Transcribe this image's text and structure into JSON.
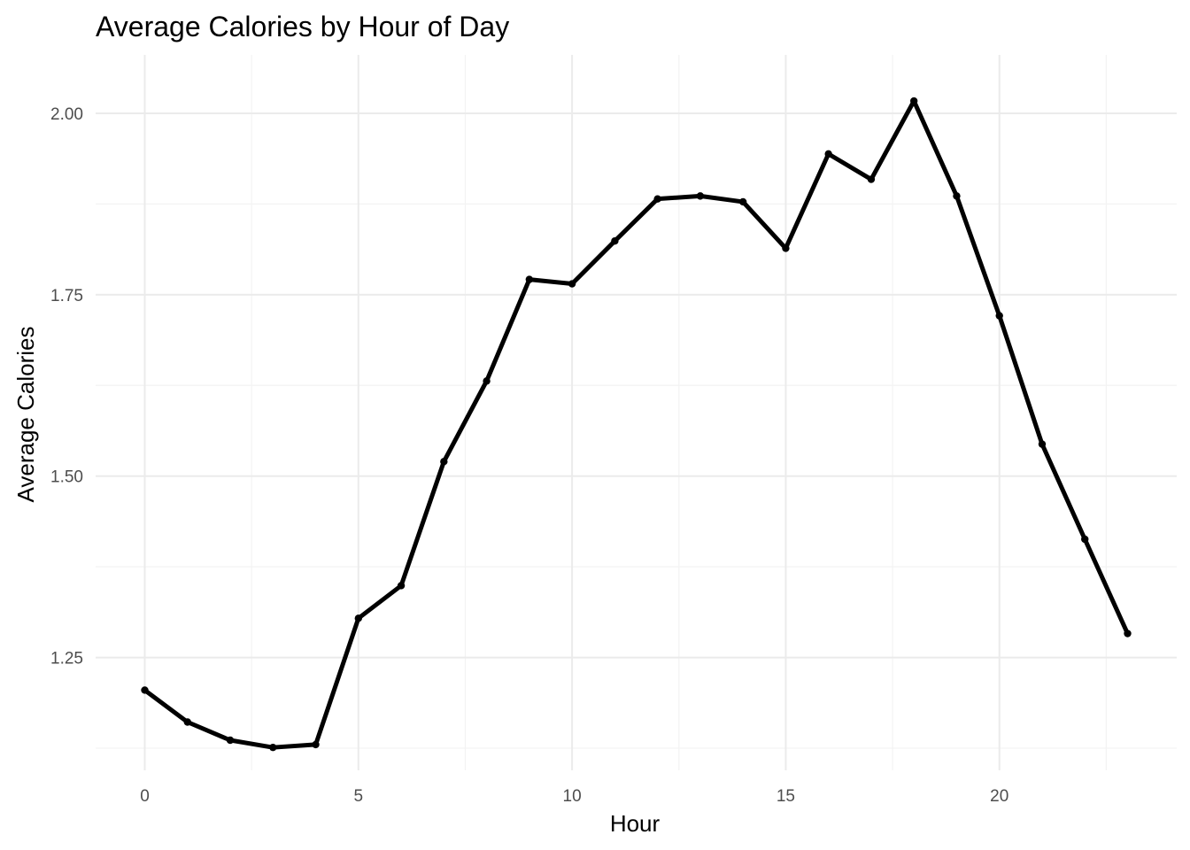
{
  "chart_data": {
    "type": "line",
    "title": "Average Calories by Hour of Day",
    "xlabel": "Hour",
    "ylabel": "Average Calories",
    "x": [
      0,
      1,
      2,
      3,
      4,
      5,
      6,
      7,
      8,
      9,
      10,
      11,
      12,
      13,
      14,
      15,
      16,
      17,
      18,
      19,
      20,
      21,
      22,
      23
    ],
    "series": [
      {
        "values": [
          1.205,
          1.161,
          1.136,
          1.126,
          1.13,
          1.304,
          1.349,
          1.52,
          1.631,
          1.771,
          1.765,
          1.824,
          1.882,
          1.886,
          1.878,
          1.814,
          1.944,
          1.909,
          2.017,
          1.886,
          1.721,
          1.544,
          1.413,
          1.283
        ]
      }
    ],
    "xlim": [
      -1.15,
      24.15
    ],
    "ylim": [
      1.0945,
      2.0805
    ],
    "x_ticks": [
      0,
      5,
      10,
      15,
      20
    ],
    "x_tick_labels": [
      "0",
      "5",
      "10",
      "15",
      "20"
    ],
    "y_ticks": [
      1.25,
      1.5,
      1.75,
      2.0
    ],
    "y_tick_labels": [
      "1.25",
      "1.50",
      "1.75",
      "2.00"
    ],
    "x_minor_ticks": [
      2.5,
      7.5,
      12.5,
      17.5,
      22.5
    ],
    "y_minor_ticks": [
      1.125,
      1.375,
      1.625,
      1.875
    ],
    "grid": true,
    "legend": "none",
    "colors": {
      "line": "#000000",
      "point": "#000000",
      "grid_major": "#ebebeb",
      "grid_minor": "#f3f3f3",
      "tick_text": "#4d4d4d",
      "title_text": "#000000"
    }
  }
}
